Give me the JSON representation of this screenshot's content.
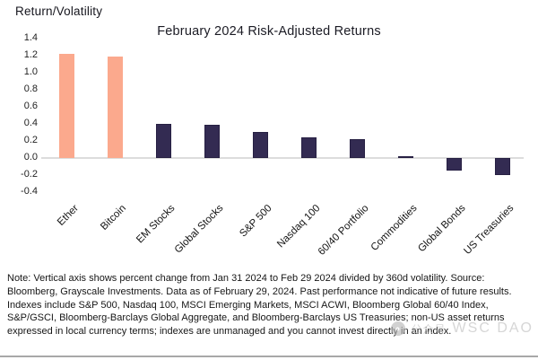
{
  "page": {
    "note": "Note: Vertical axis shows percent change from Jan 31 2024 to Feb 29 2024 divided by 360d volatility. Source: Bloomberg, Grayscale Investments. Data as of February 29, 2024. Past performance not indicative of future results. Indexes include S&P 500, Nasdaq 100, MSCI Emerging Markets, MSCI ACWI, Bloomberg Global 60/40 Index, S&P/GSCI, Bloomberg-Barclays Global Aggregate, and Bloomberg-Barclays US Treasuries; non-US asset returns expressed in local currency terms; indexes are unmanaged and you cannot invest directly in an index.",
    "watermark": {
      "icon": "wechat-logo-icon",
      "label": "公众号",
      "name": "WSC DAO"
    }
  },
  "chart_data": {
    "type": "bar",
    "title": "February 2024 Risk-Adjusted Returns",
    "ylabel": "Return/Volatility",
    "xlabel": "",
    "categories": [
      "Ether",
      "Bitcoin",
      "EM Stocks",
      "Global Stocks",
      "S&P 500",
      "Nasdaq 100",
      "60/40 Portfolio",
      "Commodities",
      "Global Bonds",
      "US Treasuries"
    ],
    "values": [
      1.22,
      1.19,
      0.4,
      0.39,
      0.31,
      0.24,
      0.22,
      0.02,
      -0.15,
      -0.2
    ],
    "ylim": [
      -0.4,
      1.4
    ],
    "ytick_step": 0.2,
    "grid": false,
    "legend": "none",
    "colors": {
      "crypto_bar": "#FBA98D",
      "traditional_bar": "#332B52",
      "bar_edge": "#16112C",
      "zero_line": "#DCDCDC",
      "text": "#1B1B24"
    },
    "point_colors": [
      "#FBA98D",
      "#FBA98D",
      "#332B52",
      "#332B52",
      "#332B52",
      "#332B52",
      "#332B52",
      "#332B52",
      "#332B52",
      "#332B52"
    ]
  }
}
